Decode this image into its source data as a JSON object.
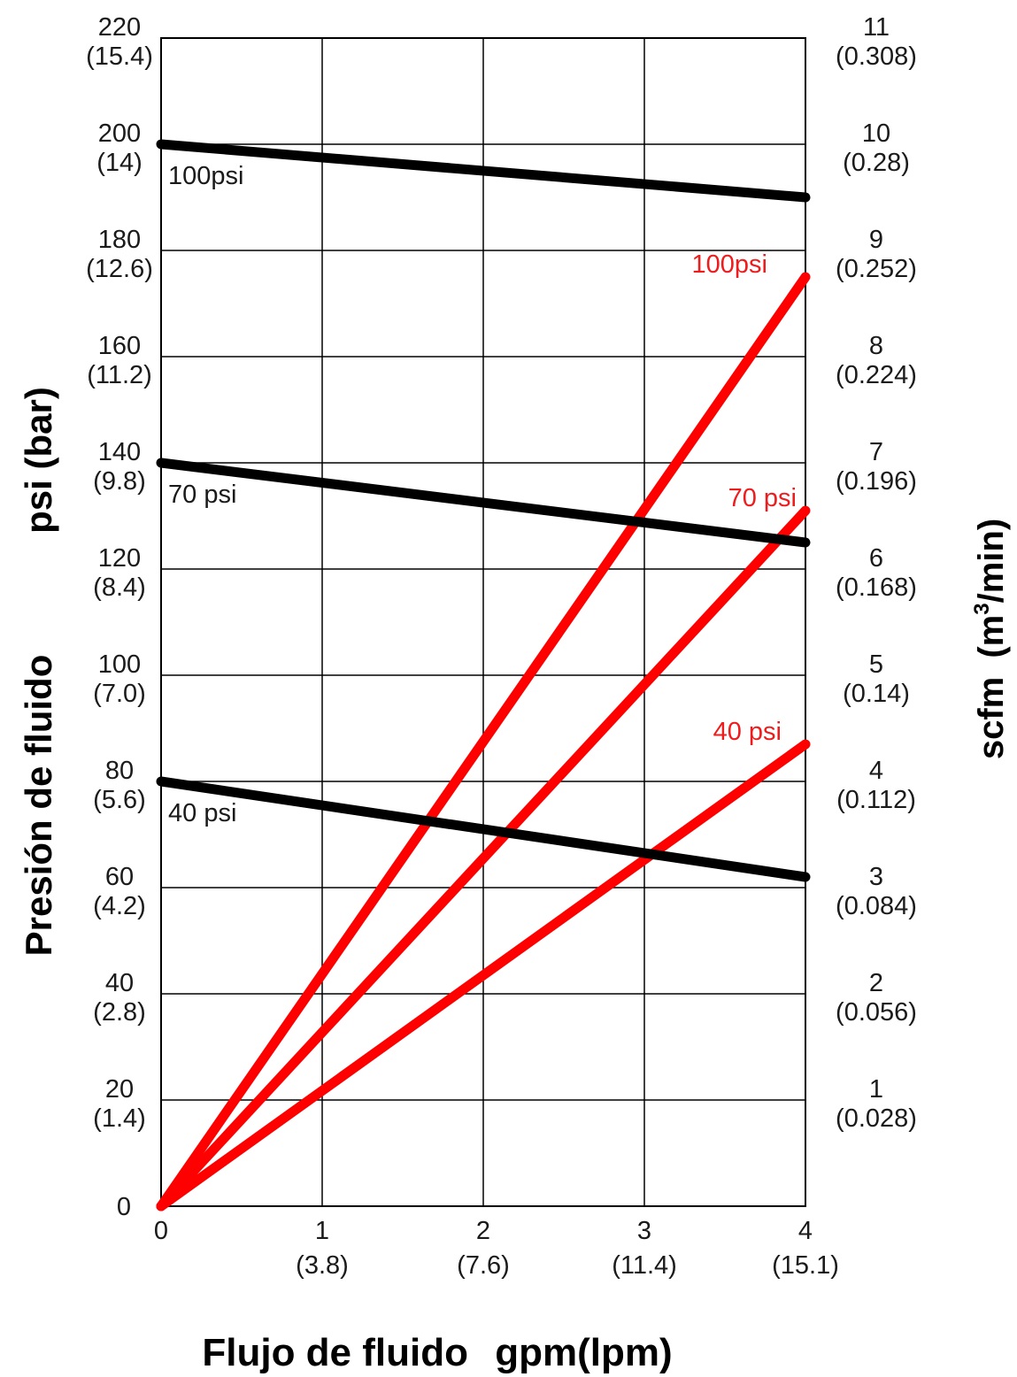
{
  "chart_data": {
    "type": "line",
    "xlabel_main": "Flujo de fluido",
    "xlabel_unit": "gpm(lpm)",
    "ylabel_left_main": "Presión de fluido",
    "ylabel_left_unit": "psi (bar)",
    "ylabel_right_main": "scfm",
    "ylabel_right_unit": "(m",
    "ylabel_right_sup": "3",
    "ylabel_right_tail": "/min)",
    "xlim": [
      0,
      4
    ],
    "ylim_left": [
      0,
      220
    ],
    "ylim_right": [
      0,
      11
    ],
    "grid": true,
    "x_ticks": [
      {
        "value": 0,
        "label": "0",
        "sub": ""
      },
      {
        "value": 1,
        "label": "1",
        "sub": "(3.8)"
      },
      {
        "value": 2,
        "label": "2",
        "sub": "(7.6)"
      },
      {
        "value": 3,
        "label": "3",
        "sub": "(11.4)"
      },
      {
        "value": 4,
        "label": "4",
        "sub": "(15.1)"
      }
    ],
    "y_left_ticks": [
      {
        "value": 0,
        "label": "0",
        "sub": ""
      },
      {
        "value": 20,
        "label": "20",
        "sub": "(1.4)"
      },
      {
        "value": 40,
        "label": "40",
        "sub": "(2.8)"
      },
      {
        "value": 60,
        "label": "60",
        "sub": "(4.2)"
      },
      {
        "value": 80,
        "label": "80",
        "sub": "(5.6)"
      },
      {
        "value": 100,
        "label": "100",
        "sub": "(7.0)"
      },
      {
        "value": 120,
        "label": "120",
        "sub": "(8.4)"
      },
      {
        "value": 140,
        "label": "140",
        "sub": "(9.8)"
      },
      {
        "value": 160,
        "label": "160",
        "sub": "(11.2)"
      },
      {
        "value": 180,
        "label": "180",
        "sub": "(12.6)"
      },
      {
        "value": 200,
        "label": "200",
        "sub": "(14)"
      },
      {
        "value": 220,
        "label": "220",
        "sub": "(15.4)"
      }
    ],
    "y_right_ticks": [
      {
        "value": 1,
        "label": "1",
        "sub": "(0.028)"
      },
      {
        "value": 2,
        "label": "2",
        "sub": "(0.056)"
      },
      {
        "value": 3,
        "label": "3",
        "sub": "(0.084)"
      },
      {
        "value": 4,
        "label": "4",
        "sub": "(0.112)"
      },
      {
        "value": 5,
        "label": "5",
        "sub": "(0.14)"
      },
      {
        "value": 6,
        "label": "6",
        "sub": "(0.168)"
      },
      {
        "value": 7,
        "label": "7",
        "sub": "(0.196)"
      },
      {
        "value": 8,
        "label": "8",
        "sub": "(0.224)"
      },
      {
        "value": 9,
        "label": "9",
        "sub": "(0.252)"
      },
      {
        "value": 10,
        "label": "10",
        "sub": "(0.28)"
      },
      {
        "value": 11,
        "label": "11",
        "sub": "(0.308)"
      }
    ],
    "series": [
      {
        "name": "100psi",
        "axis": "left",
        "color": "#000000",
        "x": [
          0,
          4
        ],
        "y": [
          200,
          190
        ]
      },
      {
        "name": "70 psi",
        "axis": "left",
        "color": "#000000",
        "x": [
          0,
          4
        ],
        "y": [
          140,
          125
        ]
      },
      {
        "name": "40 psi",
        "axis": "left",
        "color": "#000000",
        "x": [
          0,
          4
        ],
        "y": [
          80,
          62
        ]
      },
      {
        "name": "100psi",
        "axis": "right",
        "color": "#ff0000",
        "x": [
          0,
          4
        ],
        "y": [
          0,
          8.75
        ]
      },
      {
        "name": "70 psi",
        "axis": "right",
        "color": "#ff0000",
        "x": [
          0,
          4
        ],
        "y": [
          0,
          6.55
        ]
      },
      {
        "name": "40 psi",
        "axis": "right",
        "color": "#ff0000",
        "x": [
          0,
          4
        ],
        "y": [
          0,
          4.35
        ]
      }
    ]
  }
}
